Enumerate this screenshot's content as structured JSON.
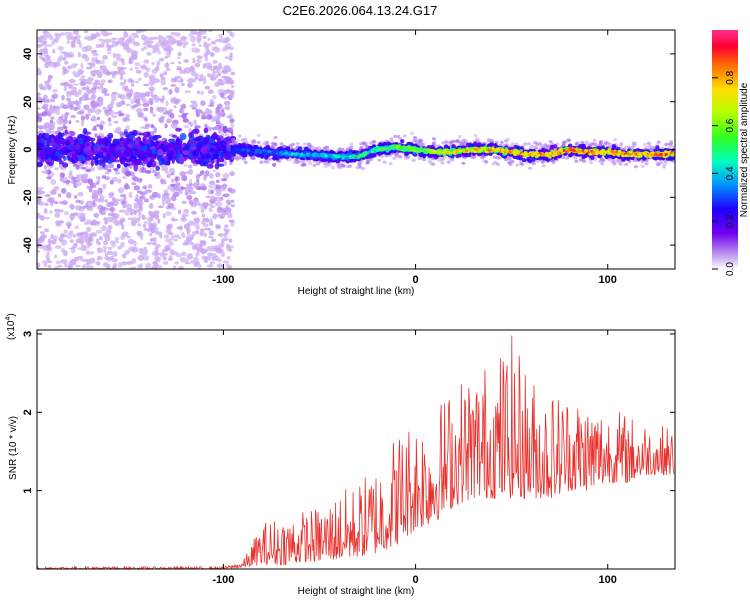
{
  "header": {
    "title": "C2E6.2026.064.13.24.G17"
  },
  "spectrogram": {
    "xlabel": "Height of straight line (km)",
    "ylabel": "Frequency (Hz)",
    "xlim": [
      -197,
      135
    ],
    "ylim": [
      -50,
      50
    ],
    "xticks": [
      -100,
      0,
      100
    ],
    "yticks": [
      -40,
      -20,
      0,
      20,
      40
    ],
    "colorbar": {
      "label": "Normalized spectral amplitude",
      "range": [
        0,
        1
      ],
      "ticks": [
        "0.0",
        "0.2",
        "0.4",
        "0.6",
        "0.8"
      ],
      "tick_values": [
        0,
        0.2,
        0.4,
        0.6,
        0.8
      ],
      "colors": [
        "#e8d9f7",
        "#a060f0",
        "#5000f0",
        "#1010ff",
        "#00c0ff",
        "#00ff80",
        "#80ff00",
        "#ffff00",
        "#ffa000",
        "#ff2000",
        "#ff0080"
      ]
    },
    "noise_region_end_km": -95
  },
  "chart_data": [
    {
      "type": "heatmap",
      "xlabel": "Height of straight line (km)",
      "ylabel": "Frequency (Hz)",
      "xlim": [
        -197,
        135
      ],
      "ylim": [
        -50,
        50
      ],
      "zlabel": "Normalized spectral amplitude",
      "zlim": [
        0,
        1
      ],
      "ridge": {
        "x": [
          -95,
          -80,
          -60,
          -40,
          -30,
          -20,
          -10,
          0,
          10,
          20,
          30,
          40,
          50,
          60,
          70,
          80,
          90,
          100,
          110,
          120,
          135
        ],
        "frequency": [
          0,
          -1,
          -2,
          -3,
          -3,
          0,
          1,
          0,
          -1,
          -1,
          0,
          0,
          -1,
          -2,
          -2,
          0,
          -1,
          -1,
          -2,
          -2,
          -2
        ],
        "amplitude": [
          0.3,
          0.4,
          0.45,
          0.5,
          0.55,
          0.6,
          0.65,
          0.7,
          0.75,
          0.8,
          0.85,
          0.88,
          0.9,
          0.92,
          0.93,
          0.95,
          0.95,
          0.95,
          0.95,
          0.95,
          0.95
        ]
      }
    },
    {
      "type": "line",
      "xlabel": "Height of straight line (km)",
      "ylabel": "SNR (10 * v/v)",
      "yscale_label": "(x10",
      "yscale_exp": "4",
      "xlim": [
        -197,
        135
      ],
      "ylim": [
        0,
        3.05
      ],
      "xticks": [
        -100,
        0,
        100
      ],
      "yticks": [
        1,
        2,
        3
      ],
      "color": "#e8302c",
      "envelope": {
        "x": [
          -197,
          -100,
          -90,
          -80,
          -70,
          -60,
          -50,
          -40,
          -30,
          -20,
          -10,
          0,
          10,
          20,
          30,
          40,
          50,
          60,
          70,
          80,
          90,
          100,
          110,
          120,
          135
        ],
        "min": [
          0.0,
          0.0,
          0.02,
          0.05,
          0.05,
          0.08,
          0.1,
          0.12,
          0.15,
          0.2,
          0.3,
          0.5,
          0.6,
          0.8,
          0.9,
          0.9,
          0.9,
          0.9,
          0.9,
          1.0,
          1.0,
          1.1,
          1.1,
          1.2,
          1.2
        ],
        "max": [
          0.03,
          0.03,
          0.1,
          0.6,
          0.7,
          0.75,
          0.8,
          1.0,
          1.1,
          1.4,
          1.8,
          2.0,
          2.1,
          2.4,
          2.6,
          2.7,
          3.0,
          2.5,
          2.3,
          2.3,
          2.2,
          2.1,
          2.0,
          1.9,
          1.8
        ]
      }
    }
  ],
  "snr": {
    "xlabel": "Height of straight line (km)",
    "ylabel": "SNR (10 * v/v)",
    "scale_prefix": "(x10",
    "scale_exp": "4",
    "scale_suffix": ")",
    "xticks": [
      -100,
      0,
      100
    ],
    "yticks": [
      1,
      2,
      3
    ]
  }
}
